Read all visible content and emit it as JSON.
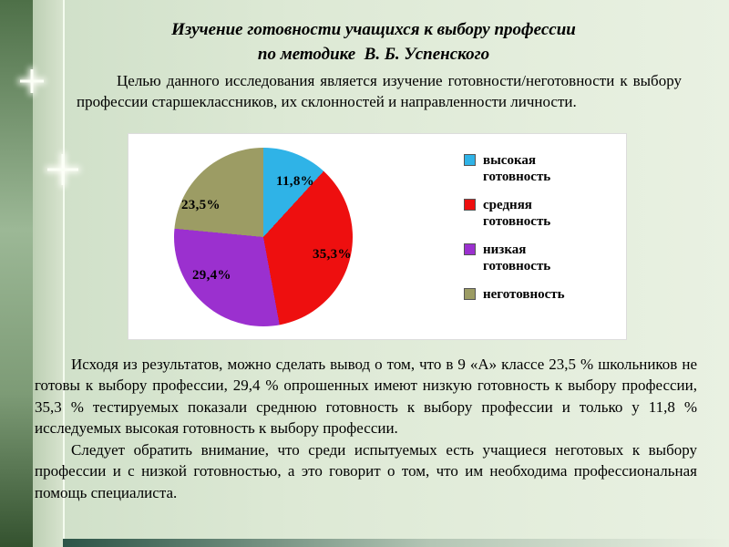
{
  "slide": {
    "title_line1": "Изучение готовности учащихся к выбору профессии",
    "title_line2": "по методике  В. Б. Успенского",
    "intro": "Целью данного исследования является изучение готовности/неготовности к выбору профессии старшеклассников, их склонностей и направленности личности.",
    "body_par1": "Исходя из результатов, можно сделать вывод о том, что в 9 «А» классе 23,5 % школьников не готовы к выбору профессии, 29,4 % опрошенных имеют низкую готовность к выбору профессии, 35,3 % тестируемых показали среднюю готовность к выбору профессии и только у 11,8 % исследуемых высокая готовность к выбору профессии.",
    "body_par2": "Следует обратить внимание, что среди испытуемых есть учащиеся неготовых к выбору профессии и с низкой готовностью, а это говорит о том, что им необходима профессиональная помощь специалиста."
  },
  "chart_data": {
    "type": "pie",
    "labels": [
      "высокая готовность",
      "средняя готовность",
      "низкая готовность",
      "неготовность"
    ],
    "values": [
      11.8,
      35.3,
      29.4,
      23.5
    ],
    "value_labels": [
      "11,8%",
      "35,3%",
      "29,4%",
      "23,5%"
    ],
    "colors": [
      "#2fb3e7",
      "#ee0f0f",
      "#9b30cf",
      "#9c9c64"
    ],
    "start_angle_deg": 0,
    "direction": "clockwise",
    "legend_position": "right",
    "background": "#ffffff"
  }
}
